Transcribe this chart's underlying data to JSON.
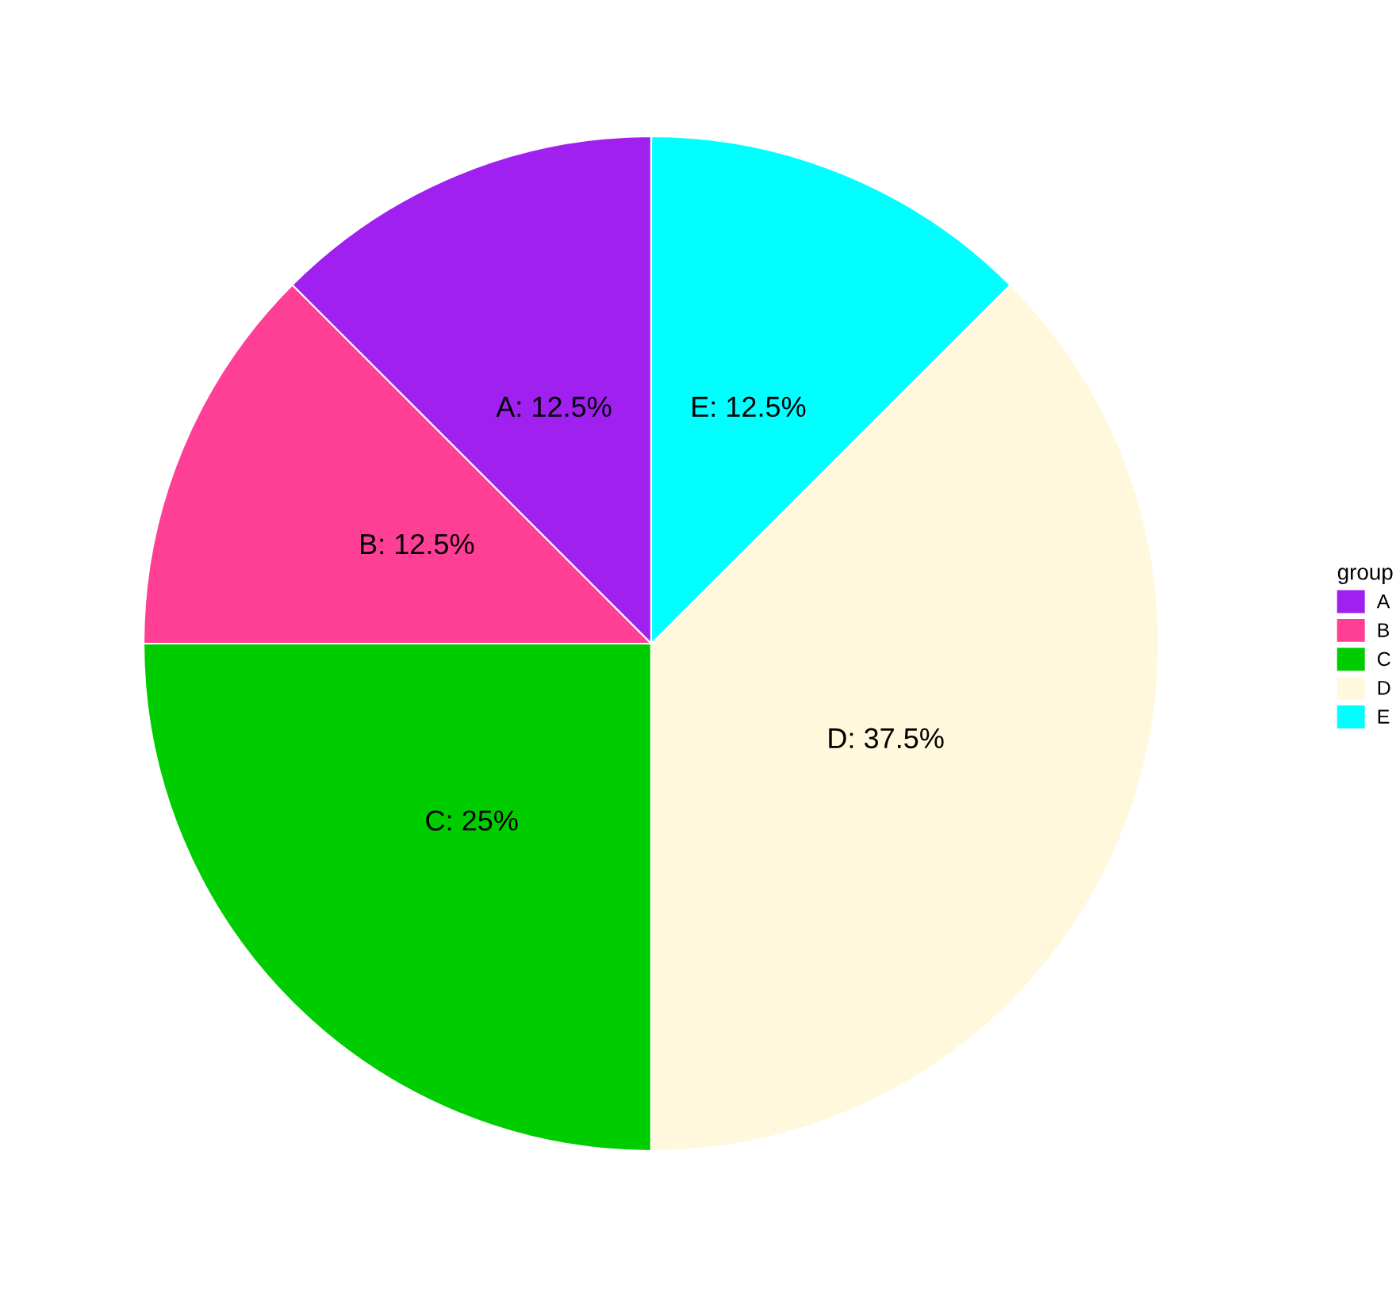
{
  "chart_data": {
    "type": "pie",
    "categories": [
      "A",
      "B",
      "C",
      "D",
      "E"
    ],
    "values": [
      12.5,
      12.5,
      25,
      37.5,
      12.5
    ],
    "colors": [
      "#a020f0",
      "#ff3e96",
      "#00cd00",
      "#fff8dc",
      "#00ffff"
    ],
    "value_labels": [
      "A: 12.5%",
      "B: 12.5%",
      "C: 25%",
      "D: 37.5%",
      "E: 12.5%"
    ],
    "legend_title": "group",
    "legend": "right"
  }
}
